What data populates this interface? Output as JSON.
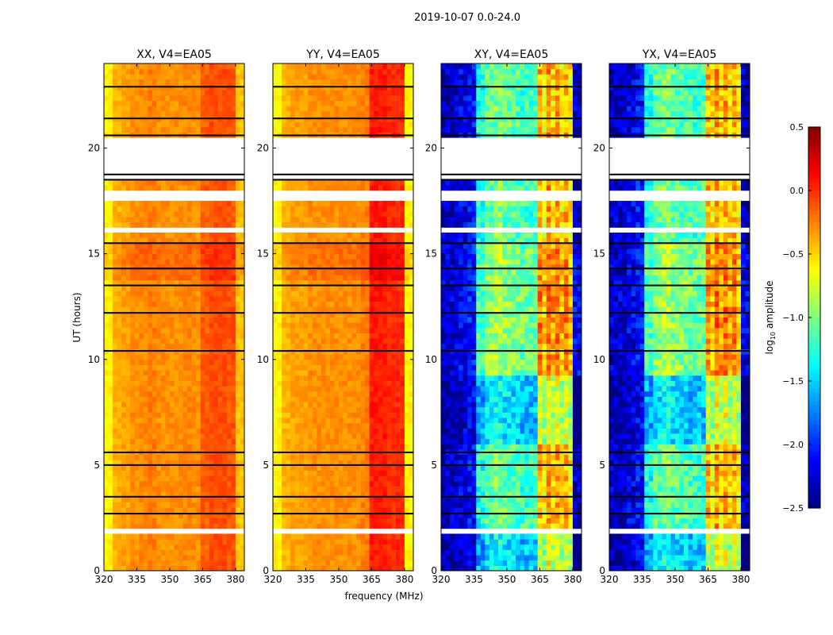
{
  "chart_data": {
    "type": "heatmap",
    "title": "2019-10-07 0.0-24.0",
    "xlabel": "frequency (MHz)",
    "ylabel": "UT (hours)",
    "xlim": [
      320,
      384
    ],
    "ylim": [
      0,
      24
    ],
    "xticks": [
      "320",
      "335",
      "350",
      "365",
      "380"
    ],
    "yticks": [
      "0",
      "5",
      "10",
      "15",
      "20"
    ],
    "colorbar": {
      "label": "log10 amplitude",
      "label_main": "log",
      "label_sub": "10",
      "label_rest": " amplitude",
      "range": [
        -2.5,
        0.5
      ],
      "ticks": [
        "0.5",
        "0.0",
        "−0.5",
        "−1.0",
        "−1.5",
        "−2.0",
        "−2.5"
      ],
      "colormap": "jet"
    },
    "flagged_white_hours": [
      [
        18.6,
        20.5
      ],
      [
        17.6,
        18.1
      ],
      [
        1.85,
        2.0
      ],
      [
        5.95,
        6.05
      ],
      [
        9.15,
        9.25
      ],
      [
        16.1,
        16.2
      ],
      [
        12.4,
        12.5
      ],
      [
        22.2,
        22.3
      ],
      [
        21.0,
        21.1
      ],
      [
        6.9,
        7.0
      ],
      [
        4.2,
        4.3
      ],
      [
        3.0,
        3.1
      ]
    ],
    "flagged_black_hours": [
      2.7,
      3.5,
      5.0,
      5.6,
      10.4,
      12.2,
      13.5,
      14.3,
      15.5,
      18.5,
      18.75,
      20.6,
      21.4,
      22.9
    ],
    "panels": [
      {
        "title": "XX, V4=EA05",
        "freq_bins": [
          320,
          324,
          328,
          332,
          336,
          340,
          344,
          348,
          352,
          356,
          360,
          364,
          368,
          372,
          376,
          380
        ],
        "log_amp": [
          -0.6,
          -0.4,
          -0.35,
          -0.3,
          -0.28,
          -0.25,
          -0.3,
          -0.3,
          -0.3,
          -0.28,
          -0.3,
          -0.15,
          -0.1,
          -0.1,
          -0.12,
          -0.45
        ]
      },
      {
        "title": "YY, V4=EA05",
        "freq_bins": [
          320,
          324,
          328,
          332,
          336,
          340,
          344,
          348,
          352,
          356,
          360,
          364,
          368,
          372,
          376,
          380
        ],
        "log_amp": [
          -0.6,
          -0.4,
          -0.35,
          -0.35,
          -0.3,
          -0.3,
          -0.3,
          -0.3,
          -0.3,
          -0.3,
          -0.25,
          0.05,
          0.05,
          0.0,
          0.0,
          -0.6
        ]
      },
      {
        "title": "XY, V4=EA05",
        "freq_bins": [
          320,
          324,
          328,
          332,
          336,
          340,
          344,
          348,
          352,
          356,
          360,
          364,
          368,
          372,
          376,
          380
        ],
        "log_amp": [
          -2.3,
          -2.3,
          -2.2,
          -2.1,
          -1.3,
          -1.1,
          -1.0,
          -1.1,
          -1.15,
          -1.2,
          -1.2,
          -0.4,
          -0.3,
          -0.35,
          -0.4,
          -2.3
        ]
      },
      {
        "title": "YX, V4=EA05",
        "freq_bins": [
          320,
          324,
          328,
          332,
          336,
          340,
          344,
          348,
          352,
          356,
          360,
          364,
          368,
          372,
          376,
          380
        ],
        "log_amp": [
          -2.3,
          -2.3,
          -2.2,
          -2.1,
          -1.3,
          -1.1,
          -1.0,
          -1.1,
          -1.15,
          -1.2,
          -1.2,
          -0.4,
          -0.3,
          -0.35,
          -0.4,
          -2.3
        ]
      }
    ]
  }
}
